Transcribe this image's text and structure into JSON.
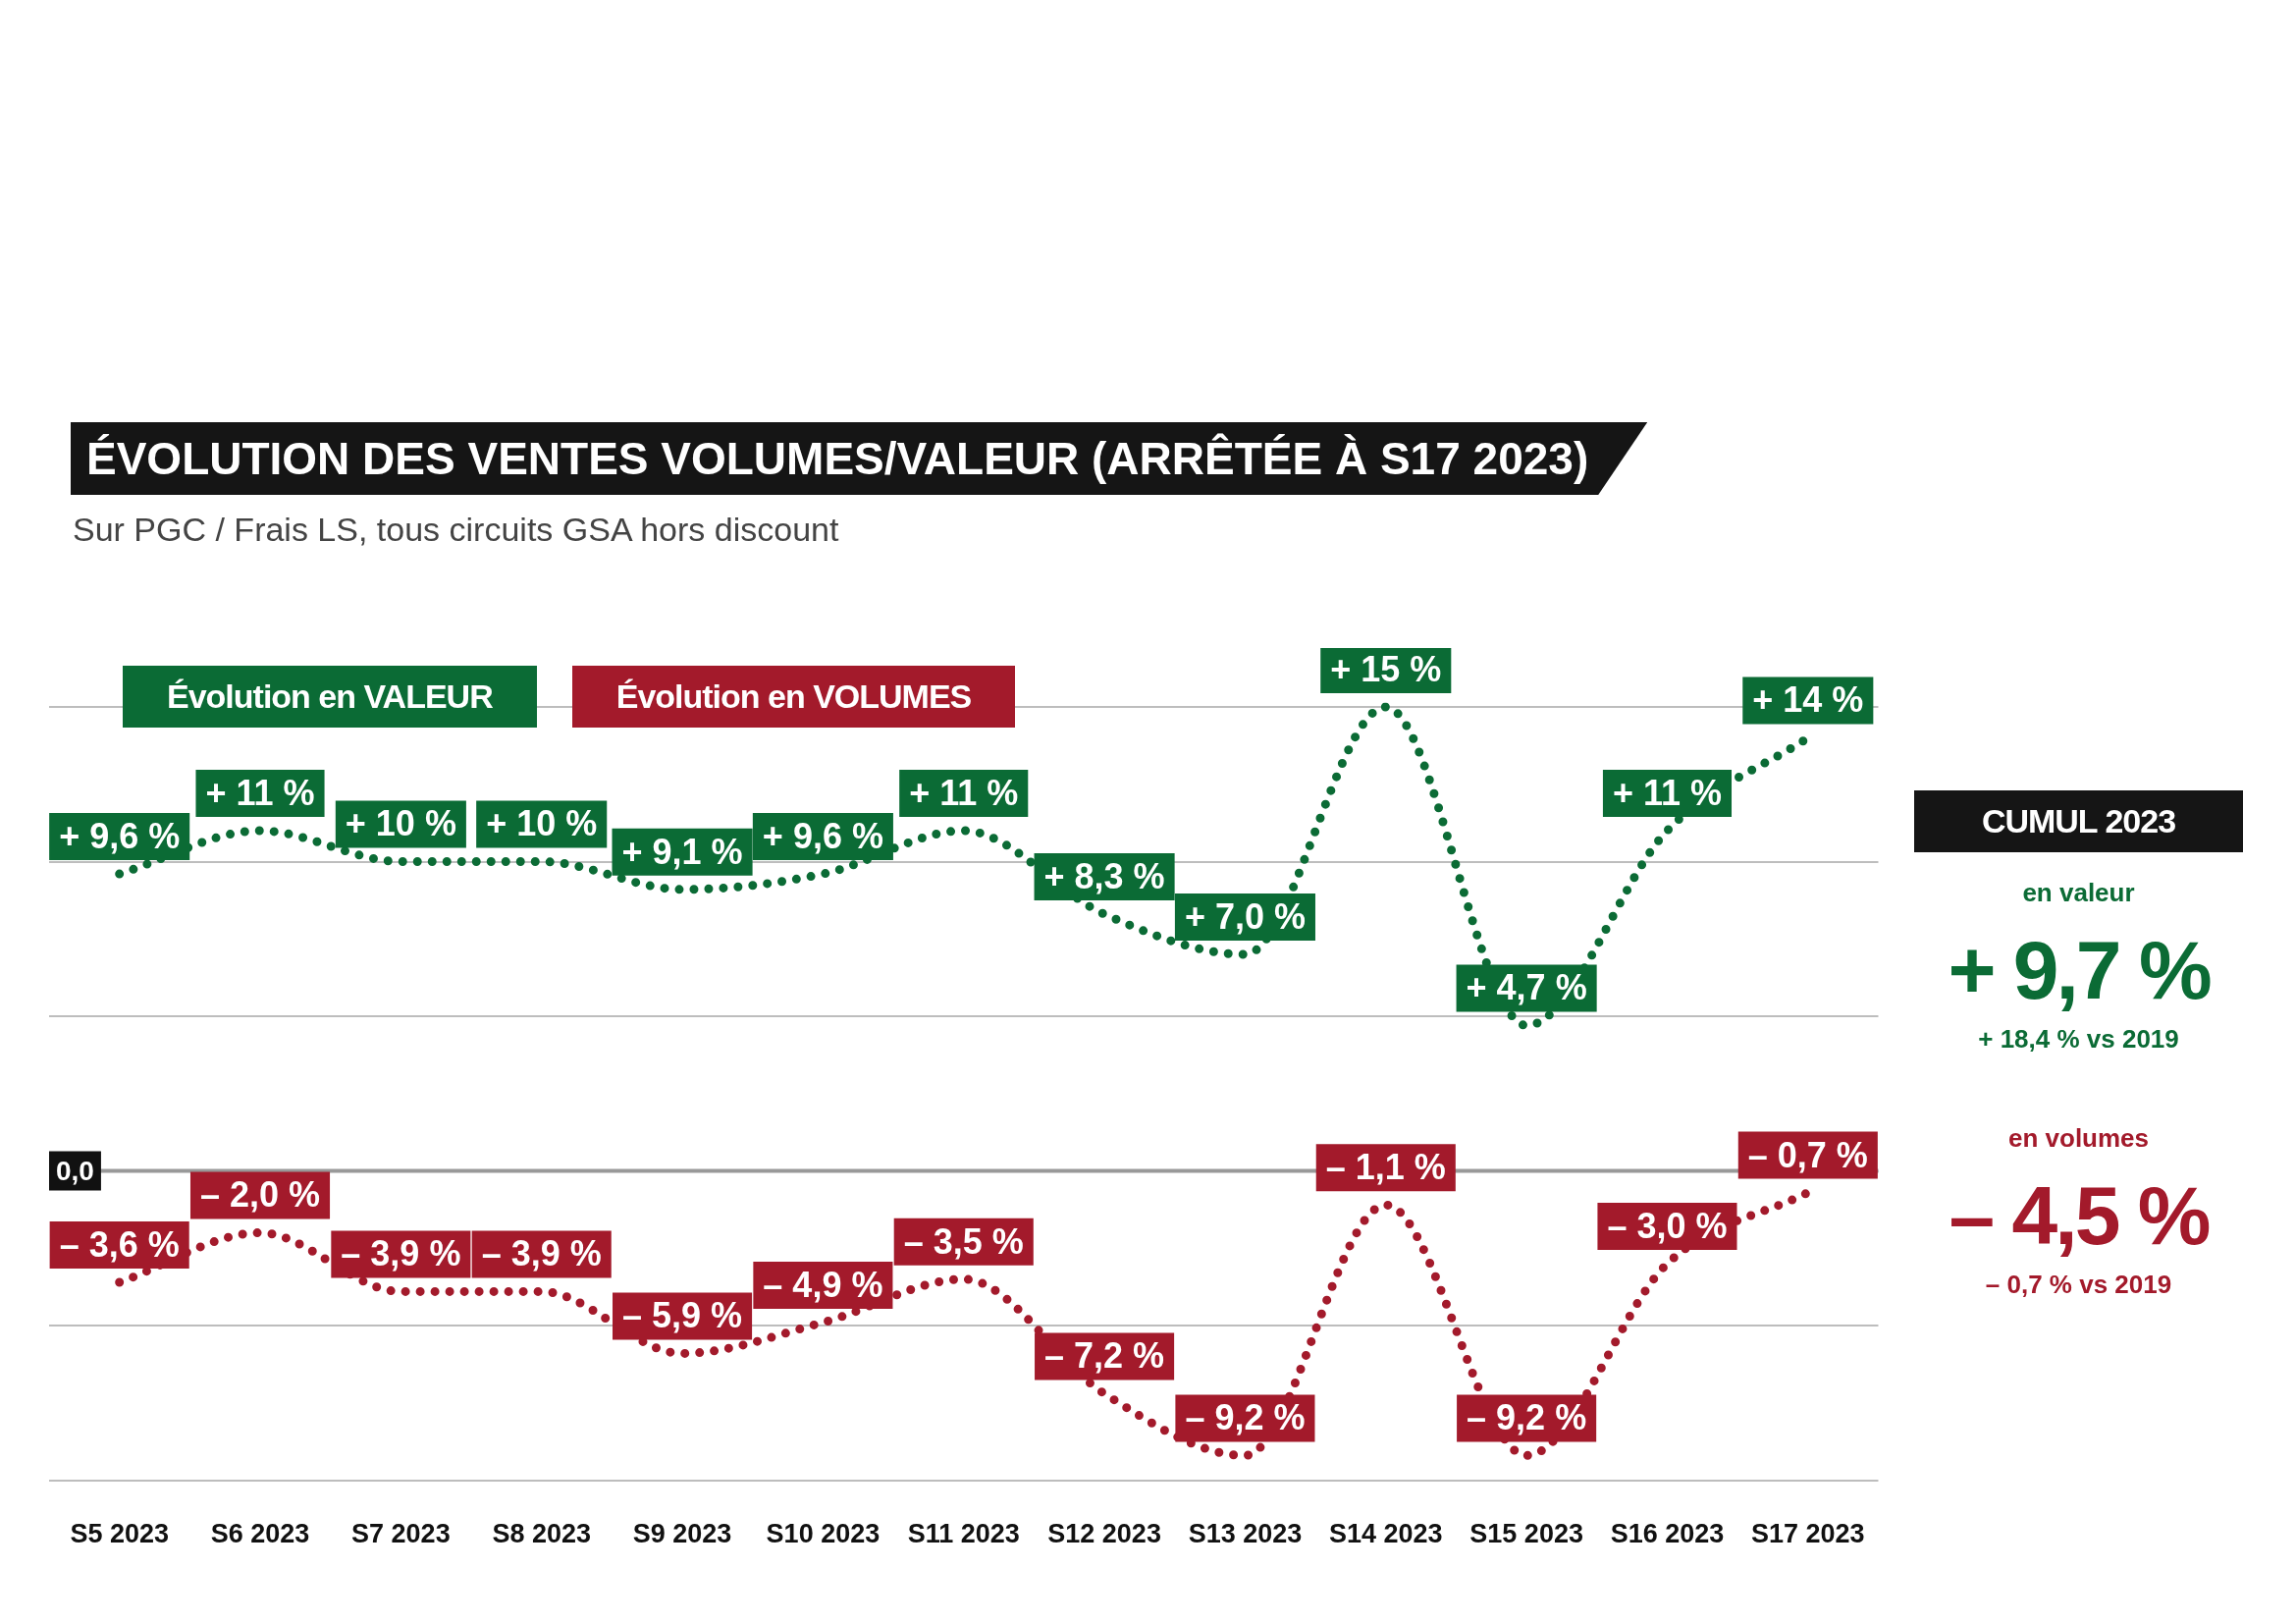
{
  "chart_data": {
    "type": "line",
    "title": "ÉVOLUTION DES VENTES VOLUMES/VALEUR (ARRÊTÉE À S17 2023)",
    "subtitle": "Sur PGC / Frais LS, tous circuits GSA hors discount",
    "categories": [
      "S5 2023",
      "S6 2023",
      "S7 2023",
      "S8 2023",
      "S9 2023",
      "S10 2023",
      "S11 2023",
      "S12 2023",
      "S13 2023",
      "S14 2023",
      "S15 2023",
      "S16 2023",
      "S17 2023"
    ],
    "series": [
      {
        "name": "Évolution en VALEUR",
        "color": "#0b6b35",
        "values": [
          9.6,
          11,
          10,
          10,
          9.1,
          9.6,
          11,
          8.3,
          7.0,
          15,
          4.7,
          11,
          14
        ],
        "value_labels": [
          "+ 9,6 %",
          "+ 11 %",
          "+ 10 %",
          "+ 10 %",
          "+ 9,1 %",
          "+ 9,6 %",
          "+ 11 %",
          "+ 8,3 %",
          "+ 7,0 %",
          "+ 15 %",
          "+ 4,7 %",
          "+ 11 %",
          "+ 14 %"
        ]
      },
      {
        "name": "Évolution en VOLUMES",
        "color": "#a31a2b",
        "values": [
          -3.6,
          -2.0,
          -3.9,
          -3.9,
          -5.9,
          -4.9,
          -3.5,
          -7.2,
          -9.2,
          -1.1,
          -9.2,
          -3.0,
          -0.7
        ],
        "value_labels": [
          "– 3,6 %",
          "– 2,0 %",
          "– 3,9 %",
          "– 3,9 %",
          "– 5,9 %",
          "– 4,9 %",
          "– 3,5 %",
          "– 7,2 %",
          "– 9,2 %",
          "– 1,1 %",
          "– 9,2 %",
          "– 3,0 %",
          "– 0,7 %"
        ]
      }
    ],
    "tick_labels": "x",
    "ref_lines": [
      {
        "axis": "y",
        "value": 0,
        "color": "#999999"
      }
    ],
    "grid": "y",
    "legend": "top left",
    "marker": "none",
    "line_style": "dotted",
    "annotations": [
      {
        "text": "0,0",
        "y": 0
      },
      "CUMUL 2023",
      "en valeur",
      "+ 9,7 %",
      "+ 18,4 % vs 2019",
      "en volumes",
      "– 4,5 %",
      "– 0,7 % vs 2019"
    ]
  }
}
